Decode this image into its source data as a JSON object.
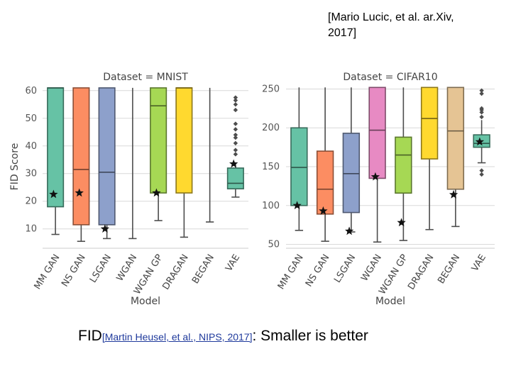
{
  "slide": {
    "citation_top_line1": "[Mario Lucic, et al. ar.Xiv,",
    "citation_top_line2": "2017]",
    "caption_prefix": "FID",
    "caption_ref": "[Martin Heusel, et al., NIPS, 2017]",
    "caption_suffix": ": Smaller is better"
  },
  "chart_data": [
    {
      "type": "box",
      "title": "Dataset = MNIST",
      "xlabel": "Model",
      "ylabel": "FID Score",
      "ylim": [
        3,
        62
      ],
      "yticks": [
        10,
        20,
        30,
        40,
        50,
        60
      ],
      "categories": [
        "MM GAN",
        "NS GAN",
        "LSGAN",
        "WGAN",
        "WGAN GP",
        "DRAGAN",
        "BEGAN",
        "VAE"
      ],
      "colors": [
        "#66c2a5",
        "#fc8d62",
        "#8da0cb",
        "#e78ac3",
        "#a6d854",
        "#ffd92f",
        "#e5c494",
        "#66c2a5"
      ],
      "boxes": [
        {
          "whislo": 8,
          "q1": 18,
          "med": 61,
          "q3": 61,
          "whishi": 61,
          "best": 22.5,
          "fliers": []
        },
        {
          "whislo": 5.5,
          "q1": 11.5,
          "med": 31.5,
          "q3": 61,
          "whishi": 61,
          "best": 23,
          "fliers": []
        },
        {
          "whislo": 6.5,
          "q1": 11.5,
          "med": 30.5,
          "q3": 61,
          "whishi": 61,
          "best": 10,
          "fliers": []
        },
        {
          "whislo": 6.5,
          "q1": null,
          "med": null,
          "q3": null,
          "whishi": 61,
          "best": null,
          "fliers": []
        },
        {
          "whislo": 13,
          "q1": 23,
          "med": 54.5,
          "q3": 61,
          "whishi": 61,
          "best": 23,
          "fliers": []
        },
        {
          "whislo": 7,
          "q1": 23,
          "med": 61,
          "q3": 61,
          "whishi": 61,
          "best": null,
          "fliers": []
        },
        {
          "whislo": 12.5,
          "q1": null,
          "med": null,
          "q3": null,
          "whishi": 61,
          "best": null,
          "fliers": []
        },
        {
          "whislo": 21.5,
          "q1": 24.5,
          "med": 26.5,
          "q3": 32,
          "whishi": 34,
          "best": 33.5,
          "fliers": [
            37,
            38.5,
            41,
            43,
            44,
            46,
            48,
            53,
            55,
            56.5,
            57.5
          ]
        }
      ]
    },
    {
      "type": "box",
      "title": "Dataset = CIFAR10",
      "xlabel": "Model",
      "ylabel": "",
      "ylim": [
        45,
        255
      ],
      "yticks": [
        50,
        100,
        150,
        200,
        250
      ],
      "categories": [
        "MM GAN",
        "NS GAN",
        "LSGAN",
        "WGAN",
        "WGAN GP",
        "DRAGAN",
        "BEGAN",
        "VAE"
      ],
      "colors": [
        "#66c2a5",
        "#fc8d62",
        "#8da0cb",
        "#e78ac3",
        "#a6d854",
        "#ffd92f",
        "#e5c494",
        "#66c2a5"
      ],
      "boxes": [
        {
          "whislo": 68,
          "q1": 100,
          "med": 149,
          "q3": 200,
          "whishi": 252,
          "best": 100,
          "fliers": []
        },
        {
          "whislo": 54,
          "q1": 89,
          "med": 121,
          "q3": 170,
          "whishi": 252,
          "best": 93,
          "fliers": []
        },
        {
          "whislo": 66,
          "q1": 91,
          "med": 141,
          "q3": 193,
          "whishi": 252,
          "best": 67,
          "fliers": []
        },
        {
          "whislo": 53,
          "q1": 135,
          "med": 197,
          "q3": 252,
          "whishi": 252,
          "best": 137,
          "fliers": []
        },
        {
          "whislo": 55,
          "q1": 116,
          "med": 165,
          "q3": 188,
          "whishi": 252,
          "best": 78,
          "fliers": []
        },
        {
          "whislo": 69,
          "q1": 160,
          "med": 212,
          "q3": 252,
          "whishi": 252,
          "best": null,
          "fliers": []
        },
        {
          "whislo": 73,
          "q1": 121,
          "med": 196,
          "q3": 252,
          "whishi": 252,
          "best": 114,
          "fliers": []
        },
        {
          "whislo": 155,
          "q1": 175,
          "med": 180,
          "q3": 191,
          "whishi": 210,
          "best": 182,
          "fliers": [
            140,
            145,
            214,
            220,
            223,
            225,
            244,
            248
          ]
        }
      ]
    }
  ]
}
